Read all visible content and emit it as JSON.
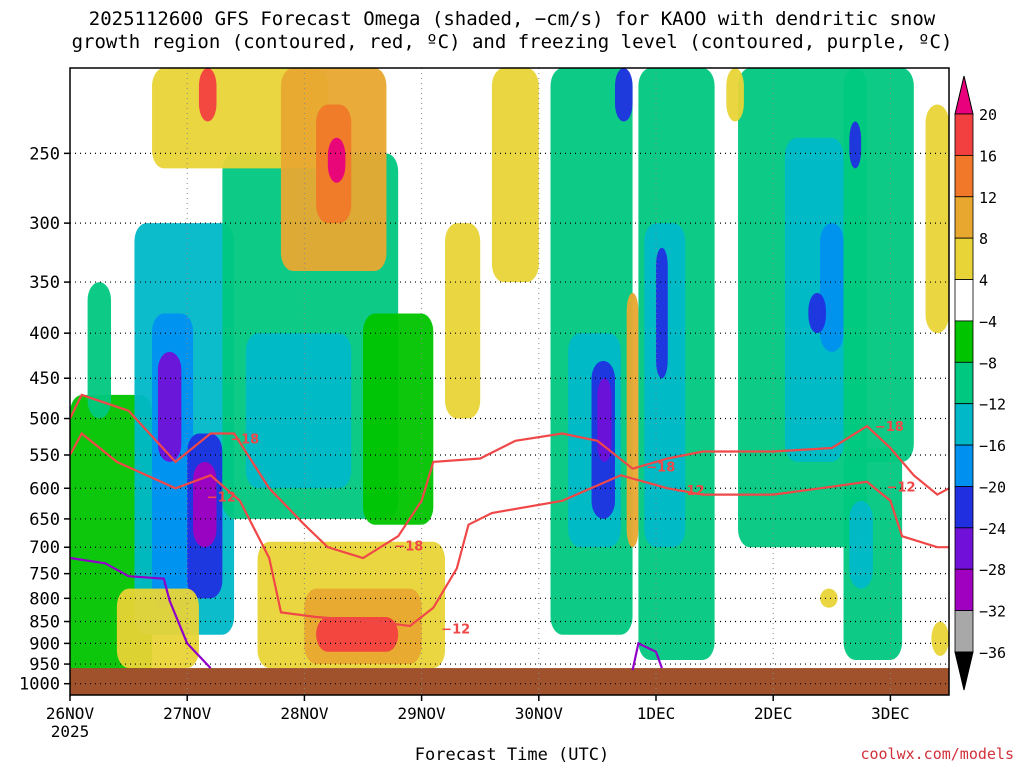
{
  "title_line1": "2025112600 GFS Forecast Omega (shaded, −cm/s) for KAOO with dendritic snow",
  "title_line2": "growth region (contoured, red, ºC) and freezing level (contoured, purple, ºC)",
  "credit": "coolwx.com/models",
  "chart_data": {
    "type": "heatmap",
    "xlabel": "Forecast Time (UTC)",
    "ylabel": "",
    "x_ticks": [
      {
        "day": 0,
        "label": "26NOV"
      },
      {
        "day": 1,
        "label": "27NOV"
      },
      {
        "day": 2,
        "label": "28NOV"
      },
      {
        "day": 3,
        "label": "29NOV"
      },
      {
        "day": 4,
        "label": "30NOV"
      },
      {
        "day": 5,
        "label": "1DEC"
      },
      {
        "day": 6,
        "label": "2DEC"
      },
      {
        "day": 7,
        "label": "3DEC"
      }
    ],
    "x_year_label": "2025",
    "xlim_days": [
      0,
      7.5
    ],
    "y_ticks": [
      250,
      300,
      350,
      400,
      450,
      500,
      550,
      600,
      650,
      700,
      750,
      800,
      850,
      900,
      950,
      1000
    ],
    "ylim_hPa": [
      1030,
      200
    ],
    "y_scale": "log-pressure",
    "grid": true,
    "colorbar": {
      "levels": [
        "20",
        "16",
        "12",
        "8",
        "4",
        "−4",
        "−8",
        "−12",
        "−16",
        "−20",
        "−24",
        "−28",
        "−32",
        "−36"
      ],
      "colors": [
        "#e8007c",
        "#f24040",
        "#f07828",
        "#e8a830",
        "#e8d436",
        "#ffffff",
        "#00c400",
        "#00c880",
        "#00b8c8",
        "#0090f0",
        "#2030e0",
        "#7010d8",
        "#a000c0",
        "#a8a8a8",
        "#000000"
      ]
    },
    "omega_regions": [
      {
        "x": [
          0.0,
          0.7
        ],
        "p": [
          470,
          1000
        ],
        "value": -6
      },
      {
        "x": [
          0.15,
          0.35
        ],
        "p": [
          350,
          500
        ],
        "value": -10
      },
      {
        "x": [
          0.55,
          1.4
        ],
        "p": [
          300,
          880
        ],
        "value": -14
      },
      {
        "x": [
          0.7,
          1.05
        ],
        "p": [
          380,
          820
        ],
        "value": -18
      },
      {
        "x": [
          0.75,
          0.95
        ],
        "p": [
          420,
          560
        ],
        "value": -24
      },
      {
        "x": [
          1.0,
          1.3
        ],
        "p": [
          520,
          800
        ],
        "value": -22
      },
      {
        "x": [
          1.05,
          1.25
        ],
        "p": [
          560,
          700
        ],
        "value": -28
      },
      {
        "x": [
          1.3,
          2.8
        ],
        "p": [
          250,
          650
        ],
        "value": -8
      },
      {
        "x": [
          1.5,
          2.4
        ],
        "p": [
          400,
          600
        ],
        "value": -12
      },
      {
        "x": [
          2.5,
          3.1
        ],
        "p": [
          380,
          660
        ],
        "value": -6
      },
      {
        "x": [
          0.7,
          2.2
        ],
        "p": [
          200,
          260
        ],
        "value": 6
      },
      {
        "x": [
          1.8,
          2.7
        ],
        "p": [
          200,
          340
        ],
        "value": 8
      },
      {
        "x": [
          2.1,
          2.4
        ],
        "p": [
          220,
          300
        ],
        "value": 14
      },
      {
        "x": [
          2.2,
          2.35
        ],
        "p": [
          240,
          270
        ],
        "value": 20
      },
      {
        "x": [
          1.1,
          1.25
        ],
        "p": [
          200,
          230
        ],
        "value": 16
      },
      {
        "x": [
          0.4,
          1.1
        ],
        "p": [
          780,
          960
        ],
        "value": 5
      },
      {
        "x": [
          1.6,
          3.2
        ],
        "p": [
          690,
          960
        ],
        "value": 6
      },
      {
        "x": [
          2.0,
          3.0
        ],
        "p": [
          780,
          950
        ],
        "value": 9
      },
      {
        "x": [
          2.1,
          2.8
        ],
        "p": [
          840,
          920
        ],
        "value": 16
      },
      {
        "x": [
          3.2,
          3.5
        ],
        "p": [
          300,
          500
        ],
        "value": 5
      },
      {
        "x": [
          3.6,
          4.0
        ],
        "p": [
          200,
          350
        ],
        "value": 5
      },
      {
        "x": [
          4.1,
          4.8
        ],
        "p": [
          200,
          880
        ],
        "value": -8
      },
      {
        "x": [
          4.25,
          4.7
        ],
        "p": [
          400,
          700
        ],
        "value": -14
      },
      {
        "x": [
          4.45,
          4.65
        ],
        "p": [
          430,
          650
        ],
        "value": -22
      },
      {
        "x": [
          4.5,
          4.62
        ],
        "p": [
          450,
          560
        ],
        "value": -26
      },
      {
        "x": [
          4.75,
          4.85
        ],
        "p": [
          360,
          700
        ],
        "value": 8
      },
      {
        "x": [
          4.85,
          5.5
        ],
        "p": [
          200,
          940
        ],
        "value": -8
      },
      {
        "x": [
          4.9,
          5.25
        ],
        "p": [
          300,
          700
        ],
        "value": -14
      },
      {
        "x": [
          5.0,
          5.1
        ],
        "p": [
          320,
          450
        ],
        "value": -20
      },
      {
        "x": [
          4.65,
          4.8
        ],
        "p": [
          200,
          230
        ],
        "value": -22
      },
      {
        "x": [
          5.7,
          6.8
        ],
        "p": [
          200,
          700
        ],
        "value": -8
      },
      {
        "x": [
          6.1,
          6.6
        ],
        "p": [
          240,
          560
        ],
        "value": -12
      },
      {
        "x": [
          6.4,
          6.6
        ],
        "p": [
          300,
          420
        ],
        "value": -16
      },
      {
        "x": [
          6.3,
          6.45
        ],
        "p": [
          360,
          400
        ],
        "value": -20
      },
      {
        "x": [
          6.6,
          7.2
        ],
        "p": [
          200,
          560
        ],
        "value": -10
      },
      {
        "x": [
          6.6,
          7.1
        ],
        "p": [
          540,
          940
        ],
        "value": -8
      },
      {
        "x": [
          6.65,
          6.85
        ],
        "p": [
          620,
          780
        ],
        "value": -14
      },
      {
        "x": [
          6.65,
          6.75
        ],
        "p": [
          230,
          260
        ],
        "value": -20
      },
      {
        "x": [
          7.3,
          7.5
        ],
        "p": [
          220,
          400
        ],
        "value": 5
      },
      {
        "x": [
          7.35,
          7.5
        ],
        "p": [
          850,
          930
        ],
        "value": 5
      },
      {
        "x": [
          6.4,
          6.55
        ],
        "p": [
          780,
          820
        ],
        "value": 5
      },
      {
        "x": [
          5.6,
          5.75
        ],
        "p": [
          200,
          230
        ],
        "value": 5
      }
    ],
    "contours": [
      {
        "name": "−18",
        "color": "#f04848",
        "points": [
          [
            0.0,
            500
          ],
          [
            0.1,
            470
          ],
          [
            0.5,
            490
          ],
          [
            0.9,
            560
          ],
          [
            1.2,
            520
          ],
          [
            1.4,
            520
          ],
          [
            1.7,
            600
          ],
          [
            2.0,
            660
          ],
          [
            2.2,
            700
          ],
          [
            2.5,
            720
          ],
          [
            2.8,
            680
          ],
          [
            3.0,
            620
          ],
          [
            3.1,
            560
          ],
          [
            3.5,
            555
          ],
          [
            3.8,
            530
          ],
          [
            4.2,
            520
          ],
          [
            4.5,
            530
          ],
          [
            4.8,
            570
          ],
          [
            5.1,
            555
          ],
          [
            5.4,
            545
          ],
          [
            6.0,
            545
          ],
          [
            6.5,
            540
          ],
          [
            6.8,
            510
          ],
          [
            7.0,
            540
          ],
          [
            7.2,
            580
          ],
          [
            7.4,
            610
          ],
          [
            7.5,
            600
          ]
        ],
        "labels": [
          [
            1.35,
            527
          ],
          [
            2.75,
            697
          ],
          [
            4.9,
            567
          ],
          [
            6.85,
            510
          ]
        ]
      },
      {
        "name": "−12",
        "color": "#f04848",
        "points": [
          [
            0.0,
            550
          ],
          [
            0.1,
            520
          ],
          [
            0.4,
            560
          ],
          [
            0.9,
            600
          ],
          [
            1.2,
            580
          ],
          [
            1.45,
            620
          ],
          [
            1.7,
            720
          ],
          [
            1.8,
            830
          ],
          [
            2.1,
            840
          ],
          [
            2.6,
            850
          ],
          [
            2.9,
            860
          ],
          [
            3.1,
            820
          ],
          [
            3.3,
            740
          ],
          [
            3.4,
            660
          ],
          [
            3.6,
            640
          ],
          [
            4.2,
            620
          ],
          [
            4.7,
            580
          ],
          [
            5.1,
            600
          ],
          [
            5.4,
            610
          ],
          [
            6.0,
            610
          ],
          [
            6.4,
            600
          ],
          [
            6.8,
            590
          ],
          [
            7.0,
            620
          ],
          [
            7.1,
            680
          ],
          [
            7.4,
            700
          ],
          [
            7.5,
            700
          ]
        ],
        "labels": [
          [
            1.15,
            613
          ],
          [
            3.15,
            866
          ],
          [
            5.15,
            603
          ],
          [
            6.95,
            597
          ]
        ]
      },
      {
        "name": "freezing-level",
        "color": "#9000c8",
        "points": [
          [
            0.0,
            720
          ],
          [
            0.3,
            730
          ],
          [
            0.5,
            755
          ],
          [
            0.8,
            760
          ],
          [
            0.85,
            805
          ],
          [
            1.0,
            900
          ],
          [
            1.2,
            960
          ]
        ],
        "labels": []
      },
      {
        "name": "freezing-level-2",
        "color": "#9000c8",
        "points": [
          [
            4.8,
            965
          ],
          [
            4.85,
            900
          ],
          [
            5.0,
            920
          ],
          [
            5.05,
            960
          ]
        ],
        "labels": []
      }
    ],
    "ground_p": 960
  }
}
